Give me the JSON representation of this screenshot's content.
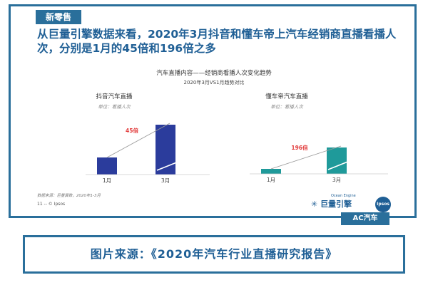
{
  "tag": "新零售",
  "headline": "从巨量引擎数据来看，2020年3月抖音和懂车帝上汽车经销商直播看播人次，分别是1月的45倍和196倍之多",
  "caption": "图片来源：《2020年汽车行业直播研究报告》",
  "footer": {
    "source_note": "数据来源：巨量算数，2020年1-3月",
    "page": "11 -- © Ipsos"
  },
  "logos": {
    "ocean_engine_top": "Ocean Engine",
    "ocean_engine_cn": "巨量引擎",
    "ipsos": "Ipsos",
    "ac": "AC汽车"
  },
  "colors": {
    "frame": "#2a6f9b",
    "douyin_bar": "#2b3c9c",
    "dcd_bar": "#1f9a9a",
    "multiplier_label": "#e23b3b"
  },
  "chart_data": {
    "title": "汽车直播内容——经销商看播人次变化趋势",
    "subtitle": "2020年3月VS1月趋势对比",
    "charts": [
      {
        "type": "bar",
        "title": "抖音汽车直播",
        "unit": "单位：看播人次",
        "categories": [
          "1月",
          "3月"
        ],
        "values": [
          1,
          45
        ],
        "multiplier_label": "45倍"
      },
      {
        "type": "bar",
        "title": "懂车帝汽车直播",
        "unit": "单位：看播人次",
        "categories": [
          "1月",
          "3月"
        ],
        "values": [
          1,
          196
        ],
        "multiplier_label": "196倍"
      }
    ]
  }
}
